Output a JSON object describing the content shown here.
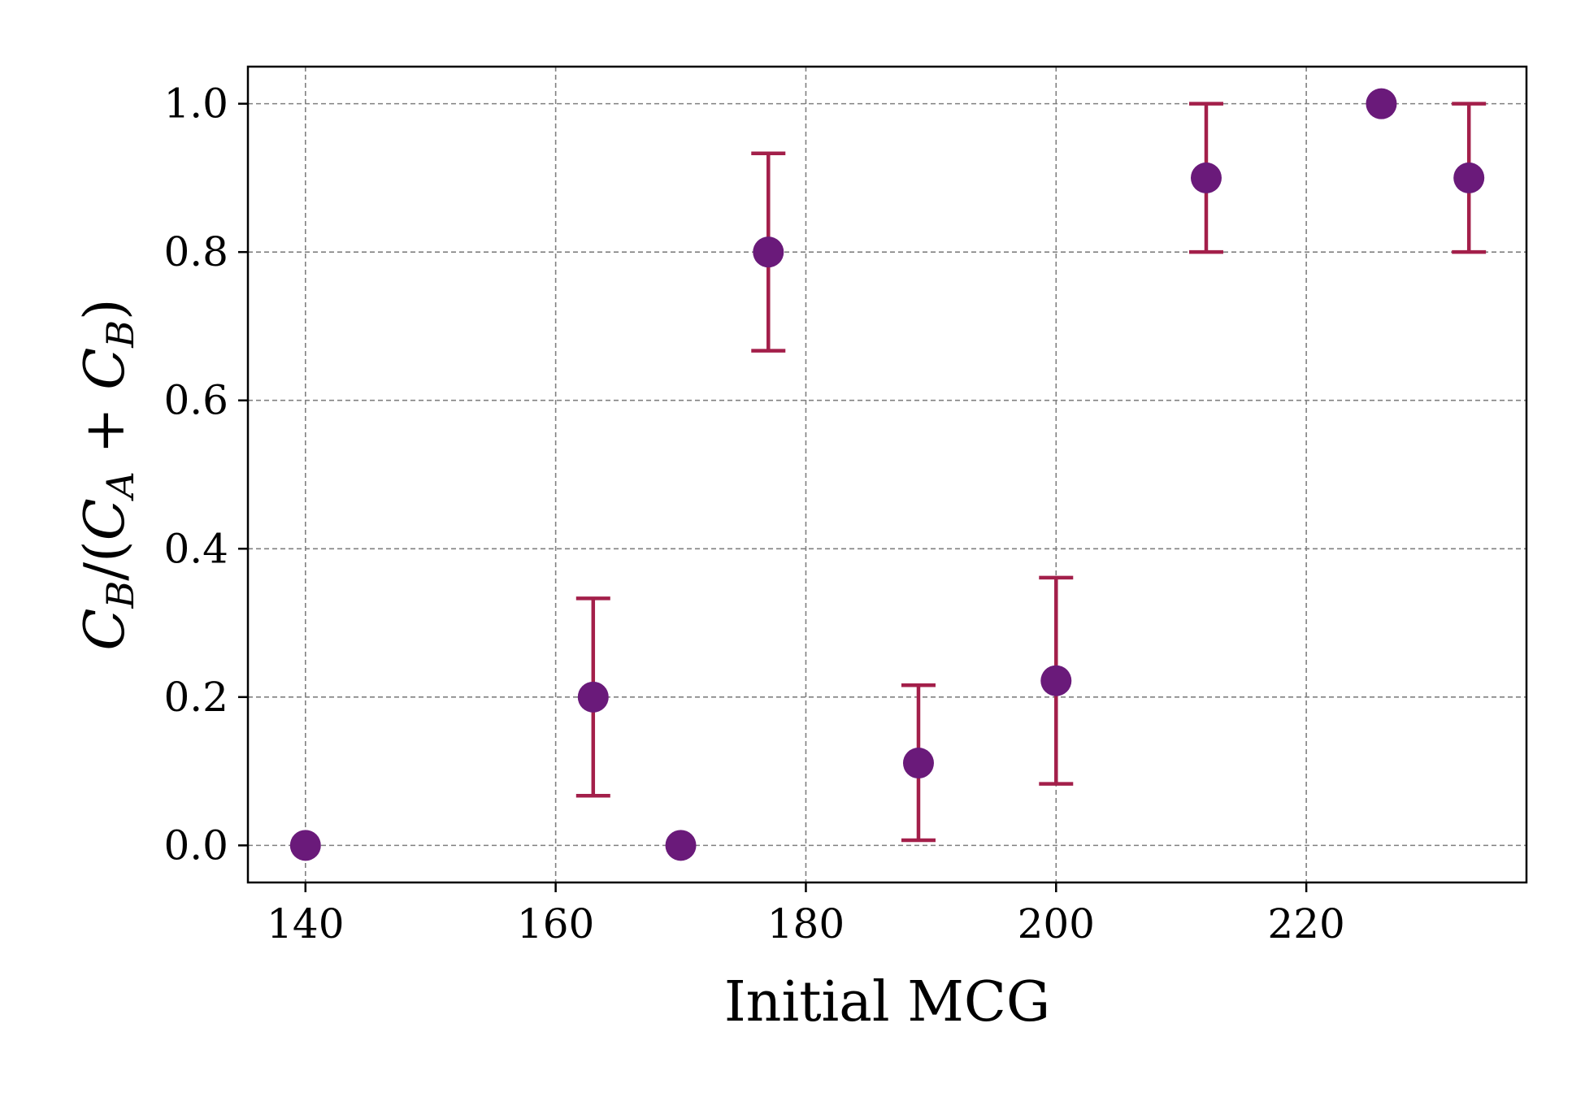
{
  "chart_data": {
    "type": "scatter",
    "xlabel": "Initial MCG",
    "ylabel_parts": [
      "C",
      "B",
      "/(",
      "C",
      "A",
      " + ",
      "C",
      "B",
      ")"
    ],
    "xlim": [
      135.4,
      237.6
    ],
    "ylim": [
      -0.05,
      1.05
    ],
    "xticks": [
      140,
      160,
      180,
      200,
      220
    ],
    "xtick_labels": [
      "140",
      "160",
      "180",
      "200",
      "220"
    ],
    "yticks": [
      0.0,
      0.2,
      0.4,
      0.6,
      0.8,
      1.0
    ],
    "ytick_labels": [
      "0.0",
      "0.2",
      "0.4",
      "0.6",
      "0.8",
      "1.0"
    ],
    "grid": true,
    "points": [
      {
        "x": 140,
        "y": 0.0,
        "lo": null,
        "hi": null
      },
      {
        "x": 163,
        "y": 0.2,
        "lo": 0.067,
        "hi": 0.333
      },
      {
        "x": 170,
        "y": 0.0,
        "lo": null,
        "hi": null
      },
      {
        "x": 177,
        "y": 0.8,
        "lo": 0.667,
        "hi": 0.933
      },
      {
        "x": 189,
        "y": 0.111,
        "lo": 0.007,
        "hi": 0.216
      },
      {
        "x": 200,
        "y": 0.222,
        "lo": 0.083,
        "hi": 0.361
      },
      {
        "x": 212,
        "y": 0.9,
        "lo": 0.8,
        "hi": 1.0
      },
      {
        "x": 226,
        "y": 1.0,
        "lo": null,
        "hi": null
      },
      {
        "x": 233,
        "y": 0.9,
        "lo": 0.8,
        "hi": 1.0
      }
    ],
    "colors": {
      "marker": "#6a1a7a",
      "errorbar": "#a31f4a",
      "grid": "#808080"
    }
  }
}
